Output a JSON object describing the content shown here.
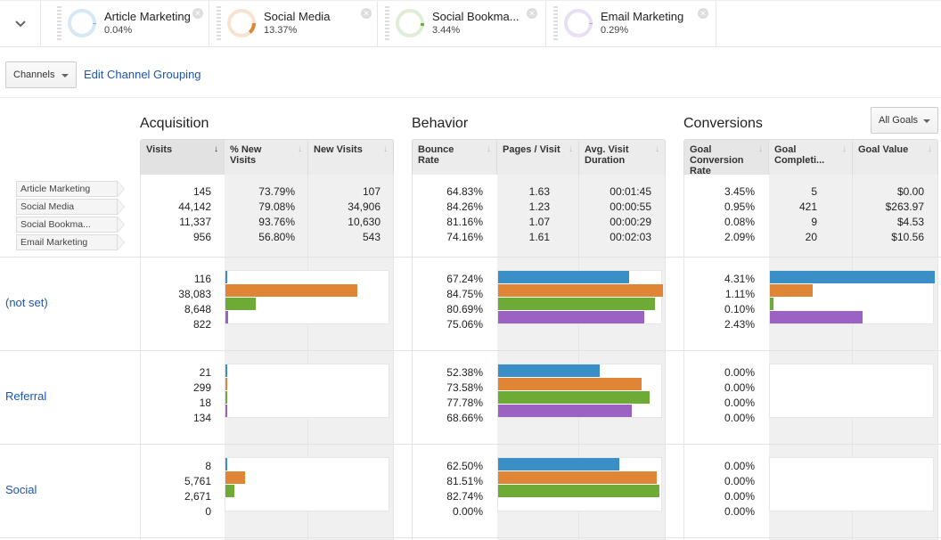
{
  "colors": {
    "article_marketing": "#3a8fc7",
    "social_media": "#e08535",
    "social_bookmarking": "#6eab36",
    "email_marketing": "#9c62c3",
    "link": "#1a56b5"
  },
  "segments": [
    {
      "name": "Article Marketing",
      "percent": "0.04%",
      "fraction": 0.0004,
      "color_key": "article_marketing",
      "track": "#d6e8f5"
    },
    {
      "name": "Social Media",
      "percent": "13.37%",
      "fraction": 0.1337,
      "color_key": "social_media",
      "track": "#f8e2d0"
    },
    {
      "name": "Social Bookma...",
      "percent": "3.44%",
      "fraction": 0.0344,
      "color_key": "social_bookmarking",
      "track": "#e1eed7"
    },
    {
      "name": "Email Marketing",
      "percent": "0.29%",
      "fraction": 0.0029,
      "color_key": "email_marketing",
      "track": "#e9dff3"
    }
  ],
  "toolbar": {
    "channels_label": "Channels",
    "edit_link": "Edit Channel Grouping",
    "goals_label": "All Goals"
  },
  "sections": {
    "acquisition": "Acquisition",
    "behavior": "Behavior",
    "conversions": "Conversions"
  },
  "headers": {
    "visits": "Visits",
    "pct_new_visits": "% New Visits",
    "new_visits": "New Visits",
    "bounce_rate": "Bounce Rate",
    "pages_visit": "Pages / Visit",
    "avg_duration": "Avg. Visit Duration",
    "goal_conv_rate": "Goal Conversion Rate",
    "goal_completions": "Goal Completi...",
    "goal_value": "Goal Value"
  },
  "legend": [
    "Article Marketing",
    "Social Media",
    "Social Bookma...",
    "Email Marketing"
  ],
  "totals": {
    "visits": [
      "145",
      "44,142",
      "11,337",
      "956"
    ],
    "pct_new_visits": [
      "73.79%",
      "79.08%",
      "93.76%",
      "56.80%"
    ],
    "new_visits": [
      "107",
      "34,906",
      "10,630",
      "543"
    ],
    "bounce_rate": [
      "64.83%",
      "84.26%",
      "81.16%",
      "74.16%"
    ],
    "pages_visit": [
      "1.63",
      "1.23",
      "1.07",
      "1.61"
    ],
    "avg_duration": [
      "00:01:45",
      "00:00:55",
      "00:00:29",
      "00:02:03"
    ],
    "goal_conv_rate": [
      "3.45%",
      "0.95%",
      "0.08%",
      "2.09%"
    ],
    "goal_completions": [
      "5",
      "421",
      "9",
      "20"
    ],
    "goal_value": [
      "$0.00",
      "$263.97",
      "$4.53",
      "$10.56"
    ]
  },
  "rows": [
    {
      "label": "(not set)",
      "visits": [
        "116",
        "38,083",
        "8,648",
        "822"
      ],
      "visits_num": [
        116,
        38083,
        8648,
        822
      ],
      "bounce_rate": [
        "67.24%",
        "84.75%",
        "80.69%",
        "75.06%"
      ],
      "bounce_num": [
        67.24,
        84.75,
        80.69,
        75.06
      ],
      "goal_conv_rate": [
        "4.31%",
        "1.11%",
        "0.10%",
        "2.43%"
      ],
      "goal_conv_num": [
        4.31,
        1.11,
        0.1,
        2.43
      ]
    },
    {
      "label": "Referral",
      "visits": [
        "21",
        "299",
        "18",
        "134"
      ],
      "visits_num": [
        21,
        299,
        18,
        134
      ],
      "bounce_rate": [
        "52.38%",
        "73.58%",
        "77.78%",
        "68.66%"
      ],
      "bounce_num": [
        52.38,
        73.58,
        77.78,
        68.66
      ],
      "goal_conv_rate": [
        "0.00%",
        "0.00%",
        "0.00%",
        "0.00%"
      ],
      "goal_conv_num": [
        0,
        0,
        0,
        0
      ]
    },
    {
      "label": "Social",
      "visits": [
        "8",
        "5,761",
        "2,671",
        "0"
      ],
      "visits_num": [
        8,
        5761,
        2671,
        0
      ],
      "bounce_rate": [
        "62.50%",
        "81.51%",
        "82.74%",
        "0.00%"
      ],
      "bounce_num": [
        62.5,
        81.51,
        82.74,
        0
      ],
      "goal_conv_rate": [
        "0.00%",
        "0.00%",
        "0.00%",
        "0.00%"
      ],
      "goal_conv_num": [
        0,
        0,
        0,
        0
      ]
    }
  ],
  "bar_scale_max": {
    "visits": 47500,
    "bounce_rate": 84.75,
    "goal_conv_rate": 4.31
  }
}
